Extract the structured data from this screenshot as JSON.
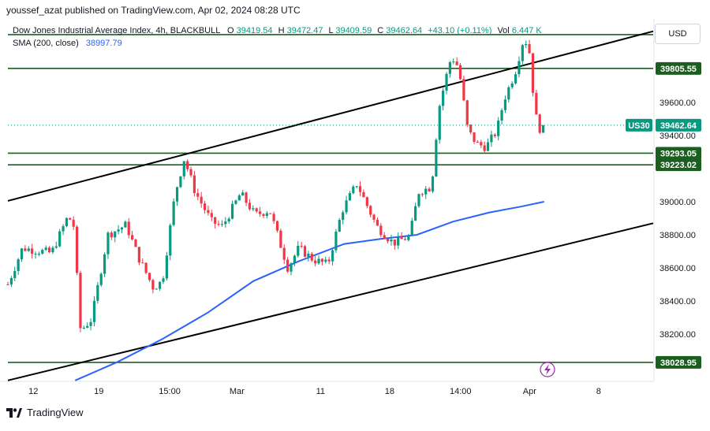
{
  "attribution": "youssef_azat published on TradingView.com, Apr 02, 2024 08:28 UTC",
  "footer_brand": "TradingView",
  "currency_button": "USD",
  "chart_data": {
    "type": "candlestick",
    "title": "Dow Jones Industrial Average Index, 4h, BLACKBULL",
    "ohlc_label": {
      "open_prefix": "O",
      "open": "39419.54",
      "high_prefix": "H",
      "high": "39472.47",
      "low_prefix": "L",
      "low": "39409.59",
      "close_prefix": "C",
      "close": "39462.64",
      "change": "+43.10 (+0.11%)",
      "volume_label": "Vol",
      "volume": "6.447 K"
    },
    "indicator": {
      "label": "SMA (200, close)",
      "value": "38997.79"
    },
    "symbol_tag": "US30",
    "last_price": "39462.64",
    "y_ticks": [
      {
        "value": 38200,
        "label": "38200.00"
      },
      {
        "value": 38400,
        "label": "38400.00"
      },
      {
        "value": 38600,
        "label": "38600.00"
      },
      {
        "value": 38800,
        "label": "38800.00"
      },
      {
        "value": 39000,
        "label": "39000.00"
      },
      {
        "value": 39400,
        "label": "39400.00"
      },
      {
        "value": 39600,
        "label": "39600.00"
      }
    ],
    "x_ticks": [
      {
        "t": 14,
        "label": "12"
      },
      {
        "t": 50,
        "label": "19"
      },
      {
        "t": 89,
        "label": "15:00"
      },
      {
        "t": 126,
        "label": "Mar"
      },
      {
        "t": 172,
        "label": "11"
      },
      {
        "t": 210,
        "label": "18"
      },
      {
        "t": 249,
        "label": "14:00"
      },
      {
        "t": 287,
        "label": "Apr"
      },
      {
        "t": 325,
        "label": "8"
      }
    ],
    "horizontal_levels": [
      {
        "value": 40010,
        "label": ""
      },
      {
        "value": 39805.55,
        "label": "39805.55"
      },
      {
        "value": 39293.05,
        "label": "39293.05"
      },
      {
        "value": 39223.02,
        "label": "39223.02"
      },
      {
        "value": 38028.95,
        "label": "38028.95"
      }
    ],
    "channel_lines": [
      {
        "t1": 0,
        "v1": 39005,
        "t2": 355,
        "v2": 40030
      },
      {
        "t1": 0,
        "v1": 37920,
        "t2": 355,
        "v2": 38870
      }
    ],
    "sma_path": [
      {
        "t": 37,
        "v": 37920
      },
      {
        "t": 60,
        "v": 38030
      },
      {
        "t": 85,
        "v": 38170
      },
      {
        "t": 110,
        "v": 38330
      },
      {
        "t": 135,
        "v": 38520
      },
      {
        "t": 160,
        "v": 38640
      },
      {
        "t": 185,
        "v": 38745
      },
      {
        "t": 205,
        "v": 38775
      },
      {
        "t": 225,
        "v": 38800
      },
      {
        "t": 245,
        "v": 38880
      },
      {
        "t": 265,
        "v": 38935
      },
      {
        "t": 282,
        "v": 38970
      },
      {
        "t": 295,
        "v": 39000
      }
    ],
    "price_waypoints": [
      {
        "t": 0,
        "v": 38500
      },
      {
        "t": 8,
        "v": 38720
      },
      {
        "t": 24,
        "v": 38690
      },
      {
        "t": 33,
        "v": 38910
      },
      {
        "t": 36,
        "v": 38870
      },
      {
        "t": 40,
        "v": 38220
      },
      {
        "t": 46,
        "v": 38290
      },
      {
        "t": 55,
        "v": 38800
      },
      {
        "t": 65,
        "v": 38860
      },
      {
        "t": 72,
        "v": 38660
      },
      {
        "t": 80,
        "v": 38480
      },
      {
        "t": 85,
        "v": 38520
      },
      {
        "t": 92,
        "v": 39050
      },
      {
        "t": 97,
        "v": 39260
      },
      {
        "t": 103,
        "v": 39060
      },
      {
        "t": 112,
        "v": 38880
      },
      {
        "t": 118,
        "v": 38850
      },
      {
        "t": 128,
        "v": 39050
      },
      {
        "t": 136,
        "v": 38920
      },
      {
        "t": 144,
        "v": 38950
      },
      {
        "t": 154,
        "v": 38600
      },
      {
        "t": 160,
        "v": 38720
      },
      {
        "t": 168,
        "v": 38650
      },
      {
        "t": 176,
        "v": 38620
      },
      {
        "t": 184,
        "v": 38950
      },
      {
        "t": 192,
        "v": 39110
      },
      {
        "t": 197,
        "v": 38990
      },
      {
        "t": 203,
        "v": 38850
      },
      {
        "t": 212,
        "v": 38750
      },
      {
        "t": 221,
        "v": 38790
      },
      {
        "t": 226,
        "v": 39060
      },
      {
        "t": 233,
        "v": 39090
      },
      {
        "t": 237,
        "v": 39560
      },
      {
        "t": 241,
        "v": 39750
      },
      {
        "t": 244,
        "v": 39880
      },
      {
        "t": 248,
        "v": 39810
      },
      {
        "t": 253,
        "v": 39430
      },
      {
        "t": 258,
        "v": 39350
      },
      {
        "t": 263,
        "v": 39330
      },
      {
        "t": 269,
        "v": 39430
      },
      {
        "t": 273,
        "v": 39620
      },
      {
        "t": 279,
        "v": 39780
      },
      {
        "t": 284,
        "v": 40000
      },
      {
        "t": 287,
        "v": 39900
      },
      {
        "t": 290,
        "v": 39530
      },
      {
        "t": 293,
        "v": 39430
      },
      {
        "t": 296,
        "v": 39462.64
      }
    ]
  }
}
